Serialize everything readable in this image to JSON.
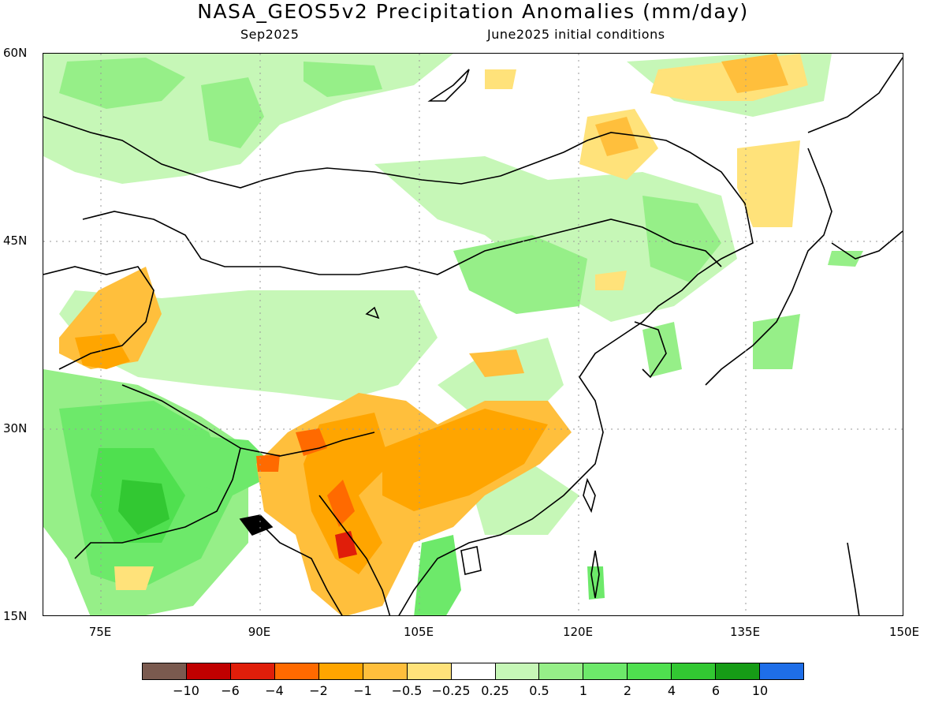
{
  "title": "NASA_GEOS5v2 Precipitation Anomalies (mm/day)",
  "subtitle_left": "Sep2025",
  "subtitle_right": "June2025 initial conditions",
  "lat_labels": [
    "60N",
    "45N",
    "30N",
    "15N"
  ],
  "lon_labels": [
    "75E",
    "90E",
    "105E",
    "120E",
    "135E",
    "150E"
  ],
  "colorbar": {
    "colors": [
      "#7a5a4f",
      "#c00000",
      "#e01e0a",
      "#ff6a00",
      "#ffa500",
      "#ffbf3c",
      "#ffe27a",
      "#ffffff",
      "#c6f7b7",
      "#96ef88",
      "#6de96a",
      "#4fe04f",
      "#32c832",
      "#169c16",
      "#1e6ee8"
    ],
    "labels": [
      "−10",
      "−6",
      "−4",
      "−2",
      "−1",
      "−0.5",
      "−0.25",
      "0.25",
      "0.5",
      "1",
      "2",
      "4",
      "6",
      "10"
    ]
  }
}
